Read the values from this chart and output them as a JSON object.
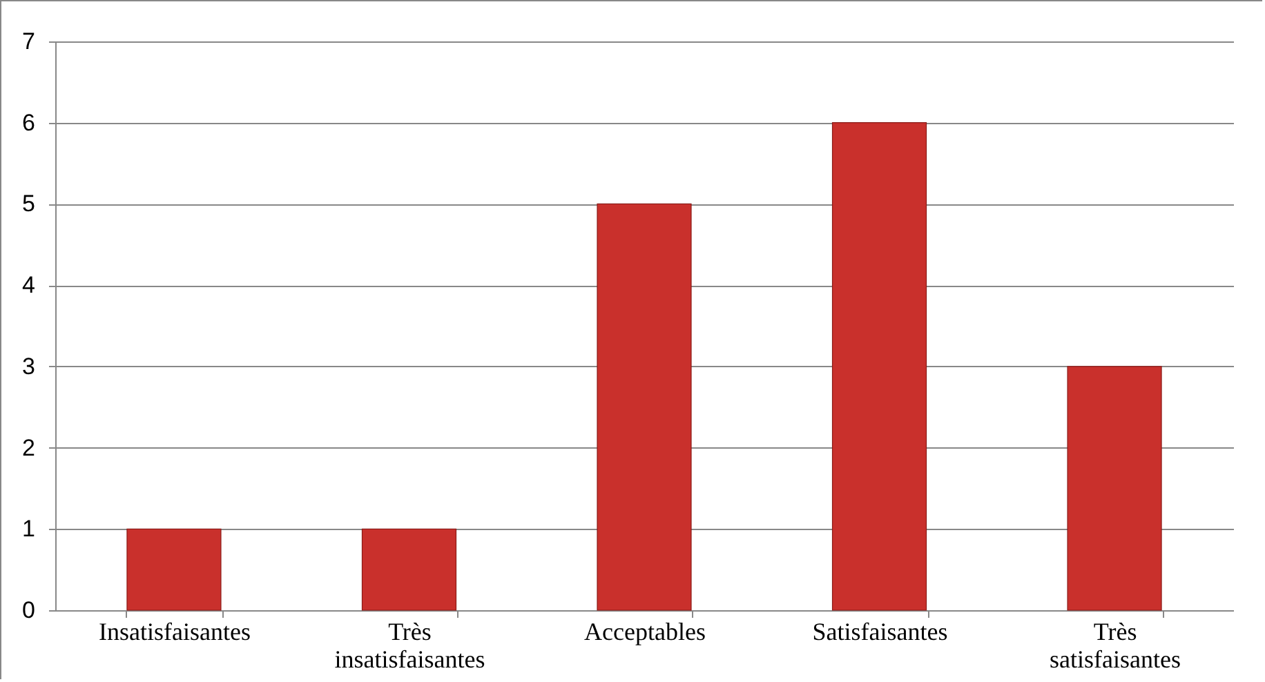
{
  "chart_data": {
    "type": "bar",
    "categories": [
      "Insatisfaisantes",
      "Très insatisfaisantes",
      "Acceptables",
      "Satisfaisantes",
      "Très satisfaisantes"
    ],
    "values": [
      1,
      1,
      5,
      6,
      3
    ],
    "color": "#c9302c",
    "ylim": [
      0,
      7
    ],
    "yticks": [
      0,
      1,
      2,
      3,
      4,
      5,
      6,
      7
    ],
    "grid": "y"
  }
}
